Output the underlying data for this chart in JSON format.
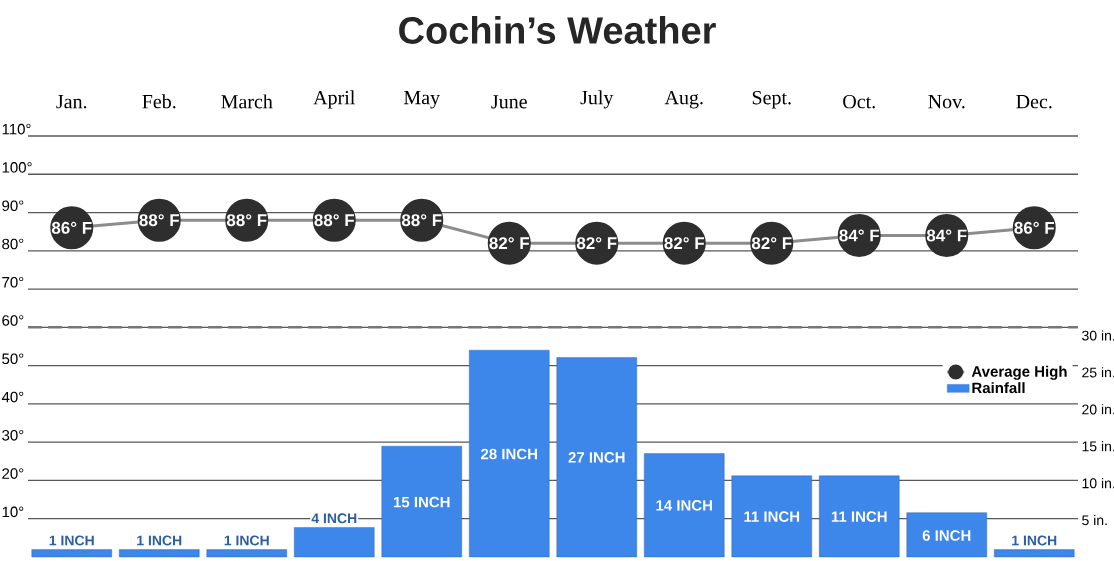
{
  "chart_data": {
    "type": "bar",
    "title": "Cochin’s Weather",
    "categories": [
      "Jan.",
      "Feb.",
      "March",
      "April",
      "May",
      "June",
      "July",
      "Aug.",
      "Sept.",
      "Oct.",
      "Nov.",
      "Dec."
    ],
    "series": [
      {
        "name": "Average High",
        "type": "line",
        "color": "#2e2e2e",
        "values": [
          86,
          88,
          88,
          88,
          88,
          82,
          82,
          82,
          82,
          84,
          84,
          86
        ],
        "value_labels": [
          "86° F",
          "88° F",
          "88° F",
          "88° F",
          "88° F",
          "82° F",
          "82° F",
          "82° F",
          "82° F",
          "84° F",
          "84° F",
          "86° F"
        ]
      },
      {
        "name": "Rainfall",
        "axis": "y2",
        "color": "#3d86ea",
        "values": [
          1,
          1,
          1,
          4,
          15,
          28,
          27,
          14,
          11,
          11,
          6,
          1
        ],
        "value_labels": [
          "1 INCH",
          "1 INCH",
          "1 INCH",
          "4 INCH",
          "15 INCH",
          "28 INCH",
          "27 INCH",
          "14 INCH",
          "11 INCH",
          "11 INCH",
          "6 INCH",
          "1 INCH"
        ]
      }
    ],
    "ylim": [
      0,
      110
    ],
    "yticks": [
      {
        "value": 10,
        "label": "10°"
      },
      {
        "value": 20,
        "label": "20°"
      },
      {
        "value": 30,
        "label": "30°"
      },
      {
        "value": 40,
        "label": "40°"
      },
      {
        "value": 50,
        "label": "50°"
      },
      {
        "value": 60,
        "label": "60°"
      },
      {
        "value": 70,
        "label": "70°"
      },
      {
        "value": 80,
        "label": "80°"
      },
      {
        "value": 90,
        "label": "90°"
      },
      {
        "value": 100,
        "label": "100°"
      },
      {
        "value": 110,
        "label": "110°"
      }
    ],
    "y2lim": [
      0,
      57
    ],
    "y2ticks": [
      {
        "value": 5,
        "label": "5 in."
      },
      {
        "value": 10,
        "label": "10 in."
      },
      {
        "value": 15,
        "label": "15 in."
      },
      {
        "value": 20,
        "label": "20 in."
      },
      {
        "value": 25,
        "label": "25 in."
      },
      {
        "value": 30,
        "label": "30 in."
      }
    ],
    "grid": "y",
    "legend": "right",
    "marker": "circle",
    "ref_lines": [
      {
        "axis": "y",
        "value": 60,
        "color": "#777777",
        "line_style": "dashed"
      }
    ]
  }
}
